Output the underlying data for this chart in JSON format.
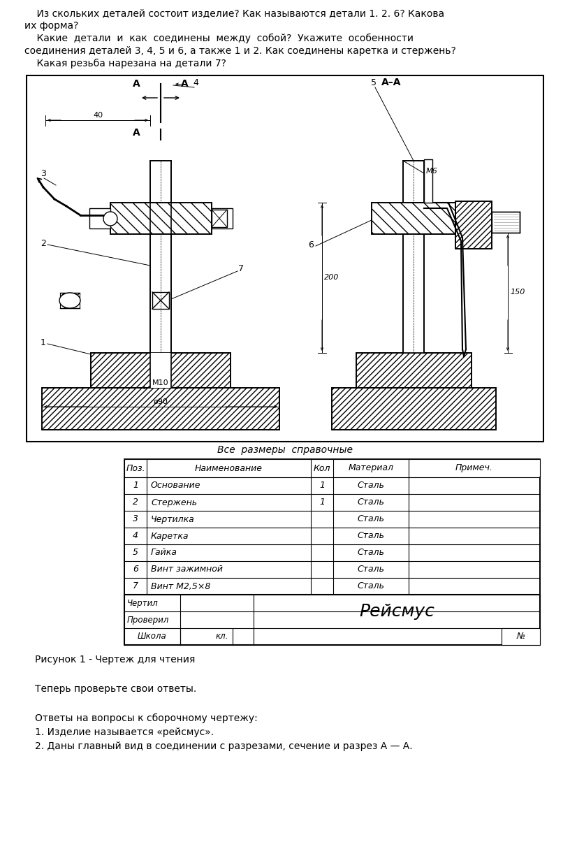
{
  "bg_color": "#ffffff",
  "page_width": 8.16,
  "page_height": 12.25,
  "text_color": "#000000",
  "intro_lines": [
    "    Из скольких деталей состоит изделие? Как называются детали 1. 2. 6? Какова",
    "их форма?",
    "    Какие  детали  и  как  соединены  между  собой?  Укажите  особенности",
    "соединения деталей 3, 4, 5 и 6, а также 1 и 2. Как соединены каретка и стержень?",
    "    Какая резьба нарезана на детали 7?"
  ],
  "caption": "Рисунок 1 - Чертеж для чтения",
  "answer_header": "Теперь проверьте свои ответы.",
  "answer_title": "Ответы на вопросы к сборочному чертежу:",
  "answer_lines": [
    "1. Изделие называется «рейсмус».",
    "2. Даны главный вид в соединении с разрезами, сечение и разрез А — А."
  ],
  "table_note": "Все  размеры  справочные",
  "table_headers": [
    "Поз.",
    "Наименование",
    "Кол",
    "Материал",
    "Примеч."
  ],
  "table_rows": [
    [
      "1",
      "Основание",
      "1",
      "Сталь",
      ""
    ],
    [
      "2",
      "Стержень",
      "1",
      "Сталь",
      ""
    ],
    [
      "3",
      "Чертилка",
      "",
      "Сталь",
      ""
    ],
    [
      "4",
      "Каретка",
      "",
      "Сталь",
      ""
    ],
    [
      "5",
      "Гайка",
      "",
      "Сталь",
      ""
    ],
    [
      "6",
      "Винт зажимной",
      "",
      "Сталь",
      ""
    ],
    [
      "7",
      "Винт М2,5×8",
      "",
      "Сталь",
      ""
    ]
  ],
  "font_size_main": 10,
  "font_size_small": 9
}
